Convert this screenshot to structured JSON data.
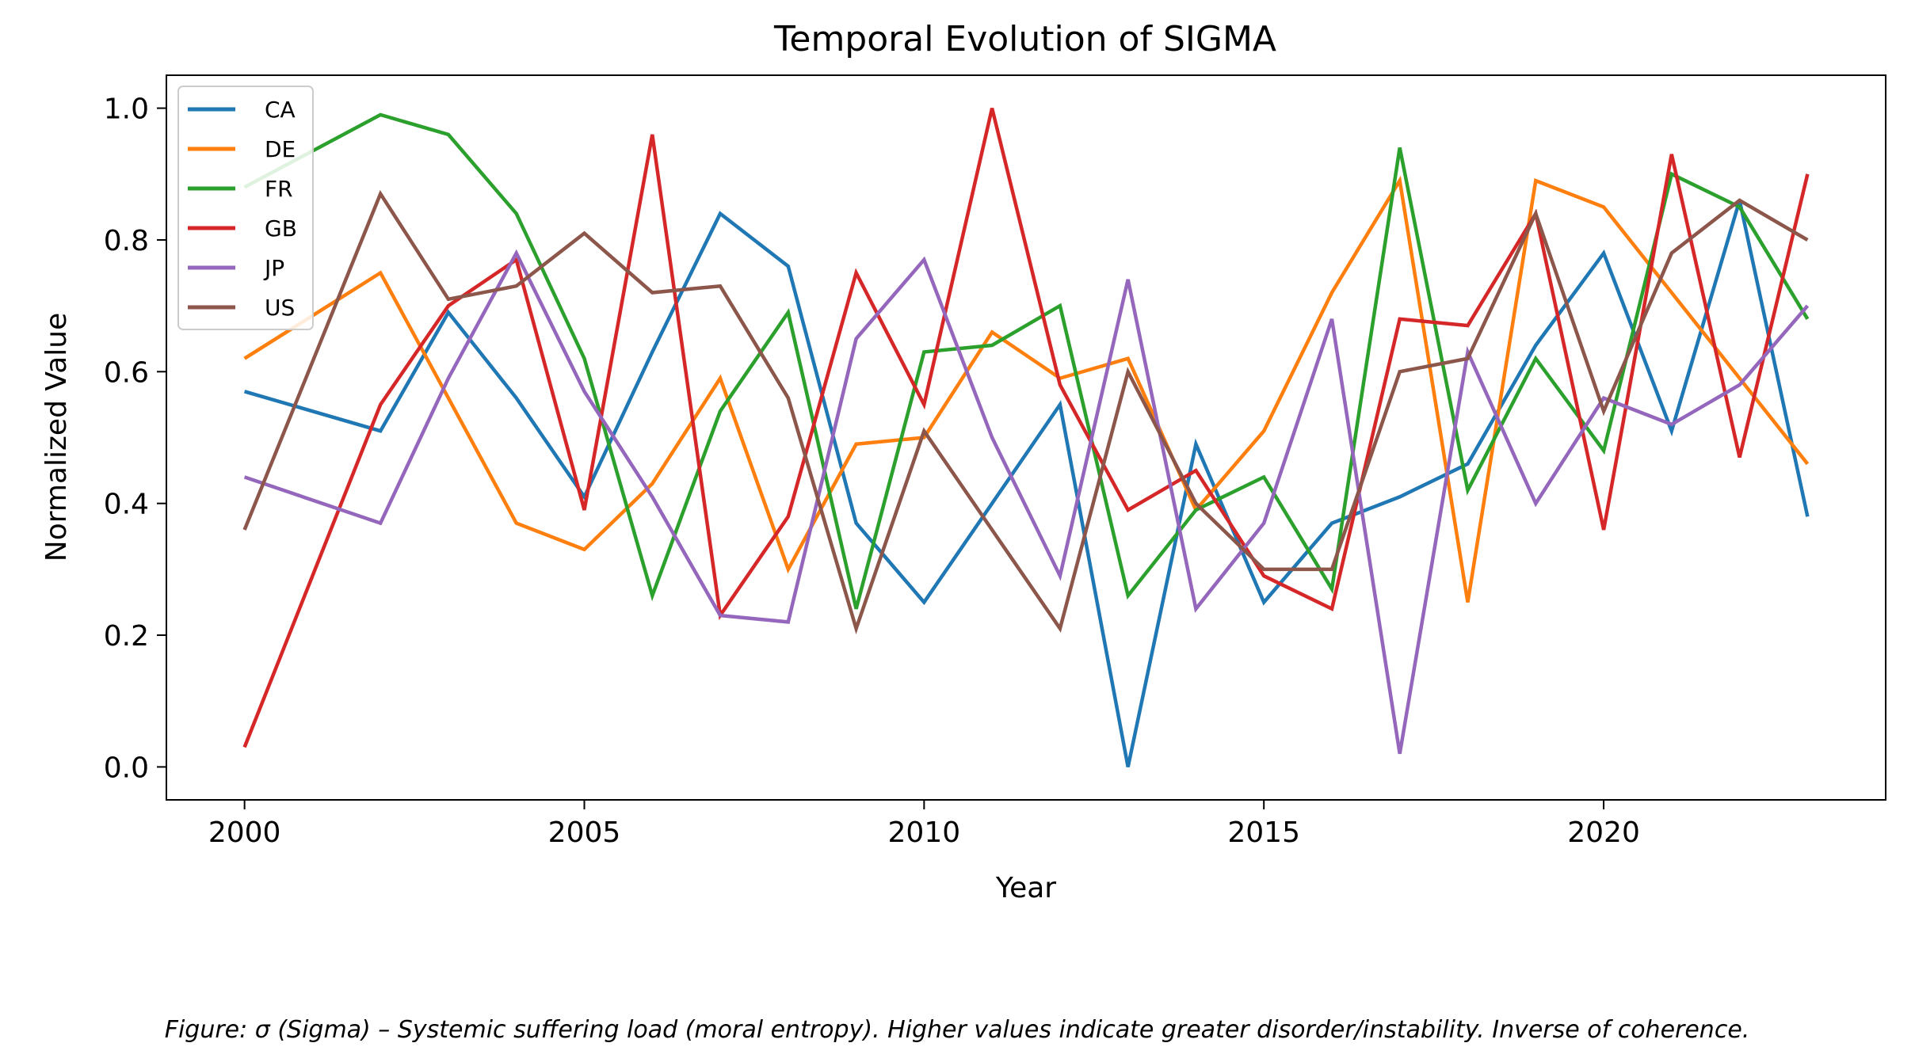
{
  "chart_data": {
    "type": "line",
    "title": "Temporal Evolution of SIGMA",
    "xlabel": "Year",
    "ylabel": "Normalized Value",
    "xlim": [
      1998.85,
      2024.15
    ],
    "ylim": [
      -0.05,
      1.05
    ],
    "xticks": [
      2000,
      2005,
      2010,
      2015,
      2020
    ],
    "xtick_labels": [
      "2000",
      "2005",
      "2010",
      "2015",
      "2020"
    ],
    "yticks": [
      0.0,
      0.2,
      0.4,
      0.6,
      0.8,
      1.0
    ],
    "ytick_labels": [
      "0.0",
      "0.2",
      "0.4",
      "0.6",
      "0.8",
      "1.0"
    ],
    "grid": false,
    "legend_position": "top-left",
    "x": [
      2000,
      2002,
      2003,
      2004,
      2005,
      2006,
      2007,
      2008,
      2009,
      2010,
      2011,
      2012,
      2013,
      2014,
      2015,
      2016,
      2017,
      2018,
      2019,
      2020,
      2021,
      2022,
      2023
    ],
    "series": [
      {
        "name": "CA",
        "color": "#1f77b4",
        "values": [
          0.57,
          0.51,
          0.69,
          0.56,
          0.41,
          0.63,
          0.84,
          0.76,
          0.37,
          0.25,
          0.4,
          0.55,
          0.0,
          0.49,
          0.25,
          0.37,
          0.41,
          0.46,
          0.64,
          0.78,
          0.51,
          0.86,
          0.38
        ]
      },
      {
        "name": "DE",
        "color": "#ff7f0e",
        "values": [
          0.62,
          0.75,
          0.56,
          0.37,
          0.33,
          0.43,
          0.59,
          0.3,
          0.49,
          0.5,
          0.66,
          0.59,
          0.62,
          0.39,
          0.51,
          0.72,
          0.89,
          0.25,
          0.89,
          0.85,
          0.72,
          0.59,
          0.46
        ]
      },
      {
        "name": "FR",
        "color": "#2ca02c",
        "values": [
          0.88,
          0.99,
          0.96,
          0.84,
          0.62,
          0.26,
          0.54,
          0.69,
          0.24,
          0.63,
          0.64,
          0.7,
          0.26,
          0.39,
          0.44,
          0.27,
          0.94,
          0.42,
          0.62,
          0.48,
          0.9,
          0.85,
          0.68
        ]
      },
      {
        "name": "GB",
        "color": "#d62728",
        "values": [
          0.03,
          0.55,
          0.7,
          0.77,
          0.39,
          0.96,
          0.23,
          0.38,
          0.75,
          0.55,
          1.0,
          0.58,
          0.39,
          0.45,
          0.29,
          0.24,
          0.68,
          0.67,
          0.84,
          0.36,
          0.93,
          0.47,
          0.9
        ]
      },
      {
        "name": "JP",
        "color": "#9467bd",
        "values": [
          0.44,
          0.37,
          0.59,
          0.78,
          0.57,
          0.41,
          0.23,
          0.22,
          0.65,
          0.77,
          0.5,
          0.29,
          0.74,
          0.24,
          0.37,
          0.68,
          0.02,
          0.63,
          0.4,
          0.56,
          0.52,
          0.58,
          0.7
        ]
      },
      {
        "name": "US",
        "color": "#8c564b",
        "values": [
          0.36,
          0.87,
          0.71,
          0.73,
          0.81,
          0.72,
          0.73,
          0.56,
          0.21,
          0.51,
          0.36,
          0.21,
          0.6,
          0.4,
          0.3,
          0.3,
          0.6,
          0.62,
          0.84,
          0.54,
          0.78,
          0.86,
          0.8
        ]
      }
    ]
  },
  "caption": "Figure: σ (Sigma) – Systemic suffering load (moral entropy). Higher values indicate greater disorder/instability. Inverse of coherence."
}
